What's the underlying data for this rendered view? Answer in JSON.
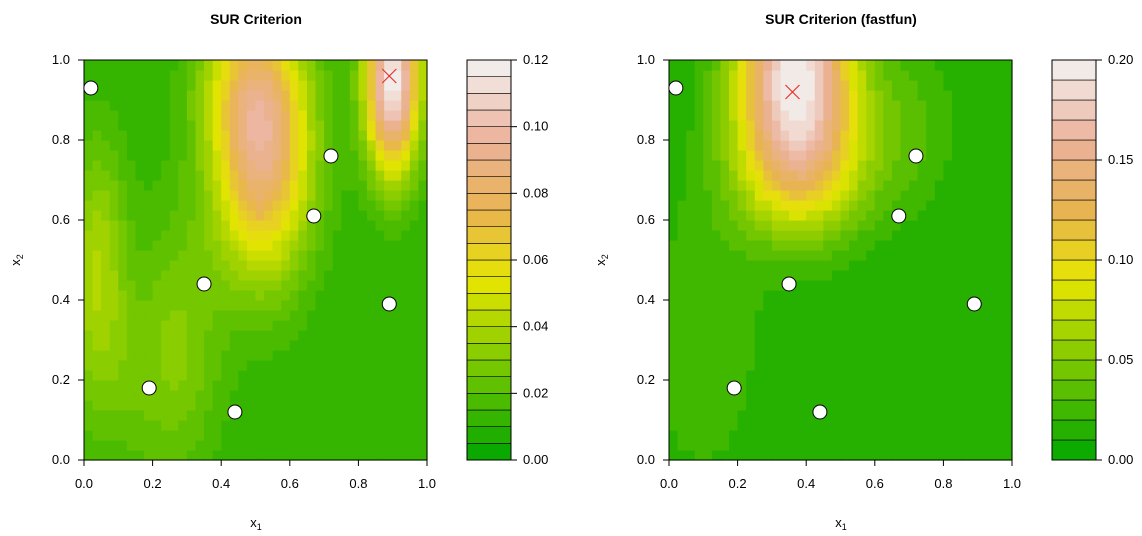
{
  "chart_data": [
    {
      "type": "heatmap",
      "subtype": "filled-contour",
      "title": "SUR Criterion",
      "xlabel": "x",
      "xlabel_sub": "1",
      "ylabel": "x",
      "ylabel_sub": "2",
      "xlim": [
        0,
        1
      ],
      "ylim": [
        0,
        1
      ],
      "xticks": [
        "0.0",
        "0.2",
        "0.4",
        "0.6",
        "0.8",
        "1.0"
      ],
      "yticks": [
        "0.0",
        "0.2",
        "0.4",
        "0.6",
        "0.8",
        "1.0"
      ],
      "colorbar": {
        "range": [
          0,
          0.12
        ],
        "levels": 24,
        "ticks": [
          "0.00",
          "0.02",
          "0.04",
          "0.06",
          "0.08",
          "0.10",
          "0.12"
        ]
      },
      "design_points": [
        {
          "x": 0.02,
          "y": 0.93
        },
        {
          "x": 0.19,
          "y": 0.18
        },
        {
          "x": 0.35,
          "y": 0.44
        },
        {
          "x": 0.44,
          "y": 0.12
        },
        {
          "x": 0.67,
          "y": 0.61
        },
        {
          "x": 0.72,
          "y": 0.76
        },
        {
          "x": 0.89,
          "y": 0.39
        }
      ],
      "maximum_marker": {
        "x": 0.89,
        "y": 0.96
      },
      "field": {
        "base": 0.01,
        "bumps": [
          {
            "x": 0.52,
            "y": 0.78,
            "sx": 0.1,
            "sy": 0.22,
            "amp": 0.08
          },
          {
            "x": 0.46,
            "y": 0.95,
            "sx": 0.1,
            "sy": 0.12,
            "amp": 0.02
          },
          {
            "x": 0.9,
            "y": 0.95,
            "sx": 0.055,
            "sy": 0.16,
            "amp": 0.11
          },
          {
            "x": 0.04,
            "y": 0.5,
            "sx": 0.06,
            "sy": 0.22,
            "amp": 0.028
          },
          {
            "x": 0.28,
            "y": 0.3,
            "sx": 0.09,
            "sy": 0.25,
            "amp": 0.018
          },
          {
            "x": 0.1,
            "y": 0.2,
            "sx": 0.12,
            "sy": 0.18,
            "amp": 0.01
          }
        ]
      }
    },
    {
      "type": "heatmap",
      "subtype": "filled-contour",
      "title": "SUR Criterion (fastfun)",
      "xlabel": "x",
      "xlabel_sub": "1",
      "ylabel": "x",
      "ylabel_sub": "2",
      "xlim": [
        0,
        1
      ],
      "ylim": [
        0,
        1
      ],
      "xticks": [
        "0.0",
        "0.2",
        "0.4",
        "0.6",
        "0.8",
        "1.0"
      ],
      "yticks": [
        "0.0",
        "0.2",
        "0.4",
        "0.6",
        "0.8",
        "1.0"
      ],
      "colorbar": {
        "range": [
          0,
          0.2
        ],
        "levels": 20,
        "ticks": [
          "0.00",
          "0.05",
          "0.10",
          "0.15",
          "0.20"
        ],
        "tick_values": [
          0,
          0.05,
          0.1,
          0.15,
          0.2
        ]
      },
      "design_points": [
        {
          "x": 0.02,
          "y": 0.93
        },
        {
          "x": 0.19,
          "y": 0.18
        },
        {
          "x": 0.35,
          "y": 0.44
        },
        {
          "x": 0.44,
          "y": 0.12
        },
        {
          "x": 0.67,
          "y": 0.61
        },
        {
          "x": 0.72,
          "y": 0.76
        },
        {
          "x": 0.89,
          "y": 0.39
        }
      ],
      "maximum_marker": {
        "x": 0.36,
        "y": 0.92
      },
      "field": {
        "base": 0.01,
        "bumps": [
          {
            "x": 0.37,
            "y": 0.97,
            "sx": 0.12,
            "sy": 0.2,
            "amp": 0.185
          },
          {
            "x": 0.4,
            "y": 0.72,
            "sx": 0.15,
            "sy": 0.12,
            "amp": 0.05
          },
          {
            "x": 0.1,
            "y": 0.3,
            "sx": 0.12,
            "sy": 0.25,
            "amp": 0.02
          },
          {
            "x": 0.7,
            "y": 0.85,
            "sx": 0.1,
            "sy": 0.15,
            "amp": 0.02
          }
        ]
      }
    }
  ]
}
